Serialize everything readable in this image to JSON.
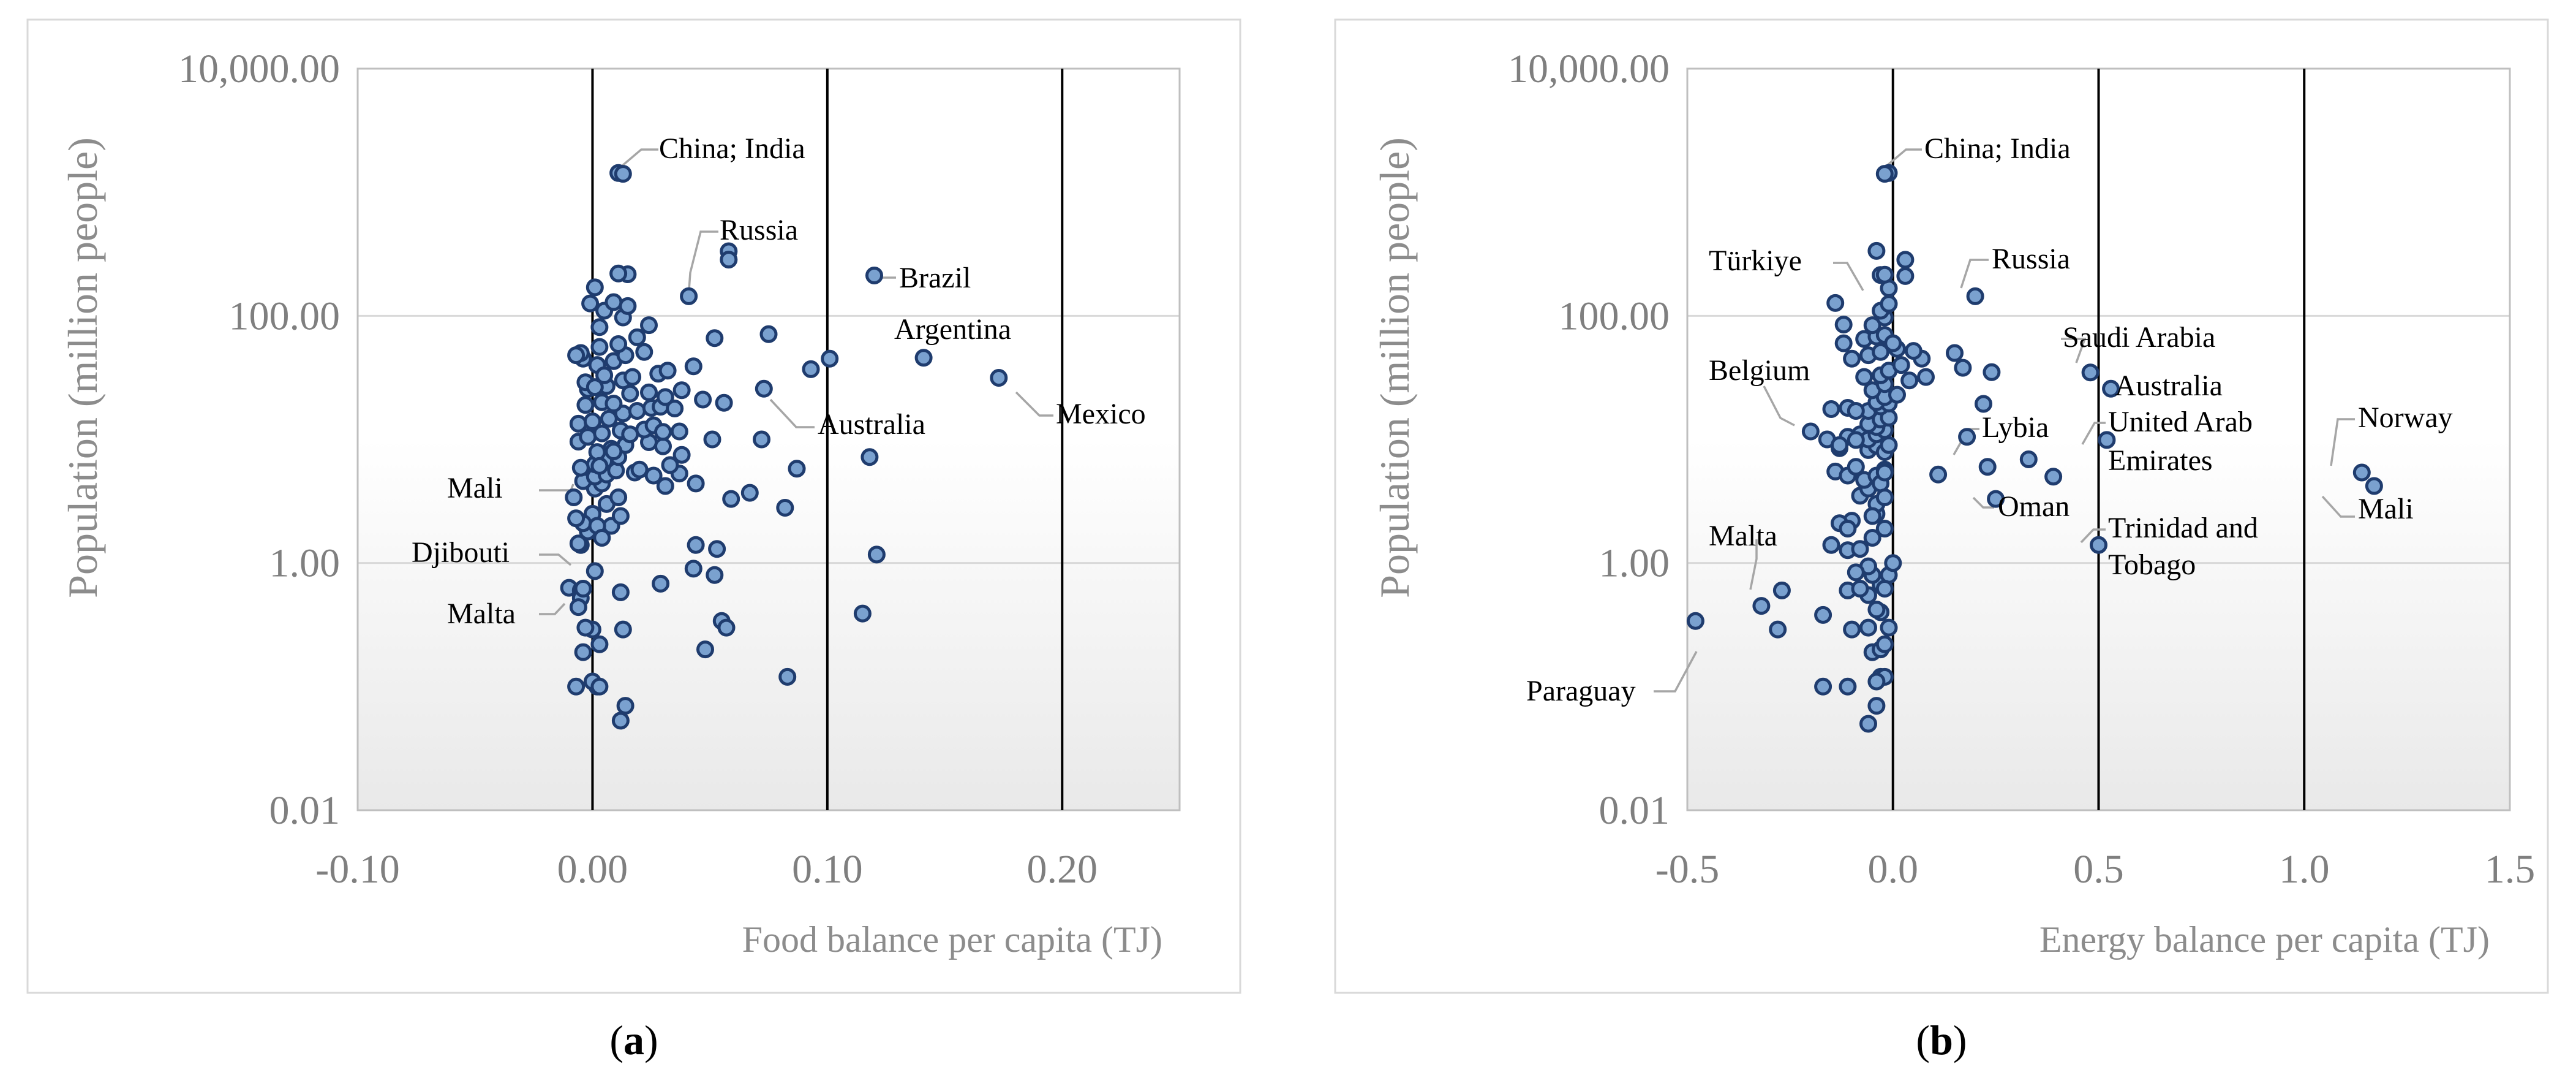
{
  "chart_data": [
    {
      "panel": "a",
      "panel_label": {
        "open": "(",
        "letter": "a",
        "close": ")"
      },
      "type": "scatter",
      "xlabel": "Food balance per capita (TJ)",
      "ylabel": "Population (million people)",
      "xlim": [
        -0.1,
        0.25
      ],
      "x_ticks": [
        -0.1,
        0.0,
        0.1,
        0.2
      ],
      "x_tick_labels": [
        "-0.10",
        "0.00",
        "0.10",
        "0.20"
      ],
      "ylim": [
        0.01,
        10000
      ],
      "y_scale": "log",
      "y_ticks": [
        0.01,
        1,
        100,
        10000
      ],
      "y_tick_labels": [
        "0.01",
        "1.00",
        "100.00",
        "10,000.00"
      ],
      "vlines": [
        0.0,
        0.1,
        0.2
      ],
      "labels": [
        {
          "text": "China; India",
          "x": 0.011,
          "y": 1430
        },
        {
          "text": "Russia",
          "x": 0.041,
          "y": 144
        },
        {
          "text": "Brazil",
          "x": 0.12,
          "y": 212
        },
        {
          "text": "Argentina",
          "x": 0.141,
          "y": 45.8
        },
        {
          "text": "Australia",
          "x": 0.073,
          "y": 25.7
        },
        {
          "text": "Mexico",
          "x": 0.174,
          "y": 31.5
        },
        {
          "text": "Mali",
          "x": -0.009,
          "y": 4.2
        },
        {
          "text": "Djibouti",
          "x": -0.009,
          "y": 1.0
        },
        {
          "text": "Malta",
          "x": -0.011,
          "y": 0.45
        }
      ],
      "points": [
        [
          0.011,
          1430
        ],
        [
          0.013,
          1410
        ],
        [
          0.058,
          333
        ],
        [
          0.058,
          285
        ],
        [
          0.12,
          212
        ],
        [
          0.041,
          144
        ],
        [
          0.141,
          45.8
        ],
        [
          0.101,
          45
        ],
        [
          0.093,
          37
        ],
        [
          0.173,
          31.5
        ],
        [
          0.075,
          71
        ],
        [
          0.052,
          66
        ],
        [
          0.073,
          25.7
        ],
        [
          0.056,
          19.8
        ],
        [
          0.118,
          7.2
        ],
        [
          0.087,
          5.8
        ],
        [
          0.072,
          10
        ],
        [
          0.059,
          3.3
        ],
        [
          0.067,
          3.7
        ],
        [
          0.082,
          2.8
        ],
        [
          0.121,
          1.17
        ],
        [
          0.044,
          1.4
        ],
        [
          0.053,
          1.3
        ],
        [
          0.043,
          0.9
        ],
        [
          0.052,
          0.8
        ],
        [
          0.029,
          0.68
        ],
        [
          0.012,
          0.58
        ],
        [
          0.055,
          0.34
        ],
        [
          0.057,
          0.3
        ],
        [
          0.048,
          0.2
        ],
        [
          0.115,
          0.39
        ],
        [
          0.083,
          0.12
        ],
        [
          0.014,
          0.07
        ],
        [
          0.012,
          0.053
        ],
        [
          0.002,
          0.1
        ],
        [
          0.0,
          0.11
        ],
        [
          0.003,
          0.1
        ],
        [
          -0.007,
          0.1
        ],
        [
          0.003,
          0.22
        ],
        [
          0.013,
          0.29
        ],
        [
          -0.004,
          0.19
        ],
        [
          0.0,
          0.29
        ],
        [
          -0.003,
          0.3
        ],
        [
          -0.01,
          0.63
        ],
        [
          -0.005,
          0.6
        ],
        [
          -0.005,
          0.52
        ],
        [
          -0.006,
          0.44
        ],
        [
          -0.004,
          0.62
        ],
        [
          0.001,
          0.86
        ],
        [
          -0.005,
          1.4
        ],
        [
          -0.006,
          1.44
        ],
        [
          0.008,
          2.0
        ],
        [
          0.012,
          2.4
        ],
        [
          0.0,
          2.5
        ],
        [
          -0.002,
          1.8
        ],
        [
          -0.004,
          2.1
        ],
        [
          0.006,
          3.0
        ],
        [
          0.011,
          3.4
        ],
        [
          0.001,
          4.0
        ],
        [
          0.004,
          4.4
        ],
        [
          -0.004,
          4.6
        ],
        [
          0.001,
          5.0
        ],
        [
          0.006,
          5.2
        ],
        [
          0.01,
          5.6
        ],
        [
          0.018,
          5.4
        ],
        [
          0.02,
          5.7
        ],
        [
          0.026,
          5.1
        ],
        [
          0.031,
          4.2
        ],
        [
          0.037,
          5.3
        ],
        [
          0.044,
          4.4
        ],
        [
          0.001,
          6.3
        ],
        [
          0.005,
          6.7
        ],
        [
          0.011,
          7.2
        ],
        [
          0.002,
          7.9
        ],
        [
          0.008,
          8.4
        ],
        [
          0.014,
          9.0
        ],
        [
          0.024,
          9.5
        ],
        [
          0.03,
          8.8
        ],
        [
          0.033,
          6.2
        ],
        [
          0.038,
          7.5
        ],
        [
          -0.006,
          9.6
        ],
        [
          -0.002,
          10.5
        ],
        [
          0.004,
          11.2
        ],
        [
          0.012,
          11.8
        ],
        [
          0.016,
          11.0
        ],
        [
          0.022,
          12.0
        ],
        [
          0.026,
          13.0
        ],
        [
          0.03,
          11.5
        ],
        [
          0.037,
          11.6
        ],
        [
          0.051,
          10.0
        ],
        [
          -0.006,
          13.4
        ],
        [
          0.0,
          14.0
        ],
        [
          0.007,
          14.7
        ],
        [
          0.013,
          16.2
        ],
        [
          0.019,
          17.0
        ],
        [
          0.025,
          18.0
        ],
        [
          0.029,
          18.4
        ],
        [
          0.035,
          17.8
        ],
        [
          -0.003,
          19.0
        ],
        [
          0.004,
          20.0
        ],
        [
          0.009,
          19.5
        ],
        [
          0.016,
          23.5
        ],
        [
          0.024,
          24.0
        ],
        [
          0.031,
          22.0
        ],
        [
          0.038,
          25.0
        ],
        [
          0.047,
          21.0
        ],
        [
          -0.002,
          25.6
        ],
        [
          0.006,
          27.0
        ],
        [
          0.013,
          30.0
        ],
        [
          0.017,
          32.0
        ],
        [
          0.028,
          34.0
        ],
        [
          0.043,
          39.0
        ],
        [
          0.002,
          40.0
        ],
        [
          0.009,
          43.0
        ],
        [
          0.014,
          48.0
        ],
        [
          0.022,
          51.0
        ],
        [
          0.032,
          36.0
        ],
        [
          -0.004,
          45.0
        ],
        [
          0.003,
          56.0
        ],
        [
          0.011,
          59.0
        ],
        [
          0.019,
          67.0
        ],
        [
          0.024,
          84.0
        ],
        [
          -0.005,
          50.0
        ],
        [
          0.003,
          81.0
        ],
        [
          0.013,
          97.0
        ],
        [
          0.015,
          120.0
        ],
        [
          0.005,
          110.0
        ],
        [
          0.009,
          129.0
        ],
        [
          0.001,
          170.0
        ],
        [
          0.015,
          217.0
        ],
        [
          0.011,
          220.0
        ],
        [
          -0.001,
          126.0
        ],
        [
          -0.007,
          48.0
        ],
        [
          -0.003,
          29.0
        ],
        [
          0.001,
          26.5
        ],
        [
          0.005,
          33.0
        ],
        [
          0.002,
          2.0
        ],
        [
          0.004,
          1.6
        ],
        [
          -0.007,
          2.3
        ],
        [
          -0.008,
          3.4
        ],
        [
          -0.005,
          5.9
        ],
        [
          0.003,
          6.1
        ],
        [
          0.009,
          8.0
        ]
      ]
    },
    {
      "panel": "b",
      "panel_label": {
        "open": "(",
        "letter": "b",
        "close": ")"
      },
      "type": "scatter",
      "xlabel": "Energy balance per capita (TJ)",
      "ylabel": "Population (million people)",
      "xlim": [
        -0.5,
        1.5
      ],
      "x_ticks": [
        -0.5,
        0.0,
        0.5,
        1.0,
        1.5
      ],
      "x_tick_labels": [
        "-0.5",
        "0.0",
        "0.5",
        "1.0",
        "1.5"
      ],
      "ylim": [
        0.01,
        10000
      ],
      "y_scale": "log",
      "y_ticks": [
        0.01,
        1,
        100,
        10000
      ],
      "y_tick_labels": [
        "0.01",
        "1.00",
        "100.00",
        "10,000.00"
      ],
      "vlines": [
        0.0,
        0.5,
        1.0
      ],
      "labels": [
        {
          "text": "China; India",
          "x": -0.01,
          "y": 1400
        },
        {
          "text": "Russia",
          "x": 0.2,
          "y": 144
        },
        {
          "text": "Türkiye",
          "x": -0.07,
          "y": 85
        },
        {
          "text": "Saudi Arabia",
          "x": 0.49,
          "y": 34.8
        },
        {
          "text": "Australia",
          "x": 0.53,
          "y": 25.7
        },
        {
          "text": "Belgium",
          "x": -0.2,
          "y": 11.6
        },
        {
          "text": "Lybia",
          "x": 0.22,
          "y": 6.9
        },
        {
          "text": "United Arab",
          "x": 0.52,
          "y": 9.9
        },
        {
          "text": "Emirates",
          "x": 0.52,
          "y": 9.9
        },
        {
          "text": "Oman",
          "x": 0.25,
          "y": 3.3
        },
        {
          "text": "Norway",
          "x": 1.14,
          "y": 5.4
        },
        {
          "text": "Mali",
          "x": 1.17,
          "y": 4.2
        },
        {
          "text": "Malta",
          "x": -0.32,
          "y": 0.45
        },
        {
          "text": "Trinidad and",
          "x": 0.5,
          "y": 1.4
        },
        {
          "text": "Tobago",
          "x": 0.5,
          "y": 1.4
        },
        {
          "text": "Paraguay",
          "x": -0.48,
          "y": 0.34
        }
      ],
      "points": [
        [
          -0.01,
          1430
        ],
        [
          -0.02,
          1410
        ],
        [
          -0.04,
          335
        ],
        [
          0.03,
          284
        ],
        [
          -0.03,
          214
        ],
        [
          0.2,
          144
        ],
        [
          0.48,
          34.8
        ],
        [
          0.53,
          25.7
        ],
        [
          0.52,
          9.9
        ],
        [
          0.22,
          19.4
        ],
        [
          0.24,
          35.0
        ],
        [
          0.15,
          50.0
        ],
        [
          0.17,
          38.0
        ],
        [
          0.18,
          10.5
        ],
        [
          0.23,
          6.0
        ],
        [
          0.33,
          6.9
        ],
        [
          0.39,
          5.0
        ],
        [
          0.25,
          3.3
        ],
        [
          0.11,
          5.2
        ],
        [
          0.5,
          1.4
        ],
        [
          1.14,
          5.4
        ],
        [
          1.17,
          4.2
        ],
        [
          -0.48,
          0.34
        ],
        [
          -0.32,
          0.45
        ],
        [
          -0.27,
          0.6
        ],
        [
          -0.28,
          0.29
        ],
        [
          -0.17,
          0.38
        ],
        [
          -0.11,
          0.6
        ],
        [
          -0.1,
          0.29
        ],
        [
          -0.06,
          0.3
        ],
        [
          -0.05,
          0.19
        ],
        [
          -0.03,
          0.2
        ],
        [
          -0.17,
          0.1
        ],
        [
          -0.11,
          0.1
        ],
        [
          -0.06,
          0.05
        ],
        [
          -0.04,
          0.07
        ],
        [
          -0.03,
          0.12
        ],
        [
          -0.02,
          0.12
        ],
        [
          -0.04,
          0.11
        ],
        [
          -0.01,
          0.3
        ],
        [
          -0.03,
          0.4
        ],
        [
          -0.06,
          0.55
        ],
        [
          -0.08,
          0.62
        ],
        [
          -0.03,
          0.67
        ],
        [
          -0.01,
          0.8
        ],
        [
          -0.05,
          0.8
        ],
        [
          -0.11,
          1.27
        ],
        [
          -0.08,
          1.3
        ],
        [
          -0.15,
          1.4
        ],
        [
          -0.1,
          2.2
        ],
        [
          -0.13,
          2.1
        ],
        [
          -0.04,
          2.5
        ],
        [
          -0.02,
          1.9
        ],
        [
          -0.04,
          3.0
        ],
        [
          -0.08,
          3.5
        ],
        [
          -0.06,
          4.0
        ],
        [
          -0.14,
          5.5
        ],
        [
          -0.11,
          5.1
        ],
        [
          -0.07,
          4.7
        ],
        [
          -0.04,
          5.1
        ],
        [
          -0.03,
          4.4
        ],
        [
          -0.02,
          5.7
        ],
        [
          -0.09,
          6.0
        ],
        [
          -0.13,
          8.5
        ],
        [
          -0.06,
          8.2
        ],
        [
          -0.04,
          8.9
        ],
        [
          -0.02,
          7.9
        ],
        [
          -0.01,
          9.0
        ],
        [
          -0.11,
          10.5
        ],
        [
          -0.08,
          11.0
        ],
        [
          -0.06,
          10.0
        ],
        [
          -0.04,
          11.0
        ],
        [
          -0.02,
          11.9
        ],
        [
          -0.04,
          12.6
        ],
        [
          -0.2,
          11.6
        ],
        [
          -0.16,
          10.0
        ],
        [
          -0.13,
          9.0
        ],
        [
          -0.09,
          9.9
        ],
        [
          -0.06,
          13.3
        ],
        [
          -0.03,
          14.5
        ],
        [
          -0.01,
          15.0
        ],
        [
          -0.06,
          17.0
        ],
        [
          -0.03,
          18.5
        ],
        [
          -0.01,
          19.5
        ],
        [
          -0.11,
          18.0
        ],
        [
          -0.09,
          17.0
        ],
        [
          -0.15,
          17.6
        ],
        [
          -0.04,
          20.0
        ],
        [
          -0.02,
          22.0
        ],
        [
          0.01,
          23.0
        ],
        [
          -0.05,
          25.0
        ],
        [
          -0.02,
          28.0
        ],
        [
          0.04,
          30.0
        ],
        [
          0.08,
          32.0
        ],
        [
          -0.07,
          32.0
        ],
        [
          -0.03,
          33.0
        ],
        [
          -0.01,
          36.0
        ],
        [
          0.02,
          40.0
        ],
        [
          -0.1,
          45.0
        ],
        [
          -0.06,
          48.0
        ],
        [
          -0.03,
          51.0
        ],
        [
          0.07,
          45.0
        ],
        [
          0.05,
          52.0
        ],
        [
          0.01,
          54.0
        ],
        [
          -0.12,
          60.0
        ],
        [
          -0.07,
          65.0
        ],
        [
          -0.04,
          68.0
        ],
        [
          -0.02,
          70.0
        ],
        [
          0.0,
          60.0
        ],
        [
          -0.12,
          85.0
        ],
        [
          -0.05,
          84.0
        ],
        [
          -0.02,
          97.0
        ],
        [
          -0.03,
          110.0
        ],
        [
          -0.01,
          125.0
        ],
        [
          -0.14,
          127.0
        ],
        [
          -0.01,
          167.0
        ],
        [
          -0.02,
          215.0
        ],
        [
          0.03,
          210.0
        ],
        [
          -0.02,
          5.4
        ],
        [
          -0.11,
          1.9
        ],
        [
          -0.05,
          2.4
        ],
        [
          -0.02,
          3.4
        ],
        [
          -0.06,
          0.94
        ],
        [
          -0.04,
          0.42
        ],
        [
          -0.02,
          0.62
        ],
        [
          0.0,
          1.0
        ],
        [
          -0.02,
          0.22
        ],
        [
          -0.09,
          0.84
        ],
        [
          -0.05,
          1.6
        ]
      ]
    }
  ]
}
